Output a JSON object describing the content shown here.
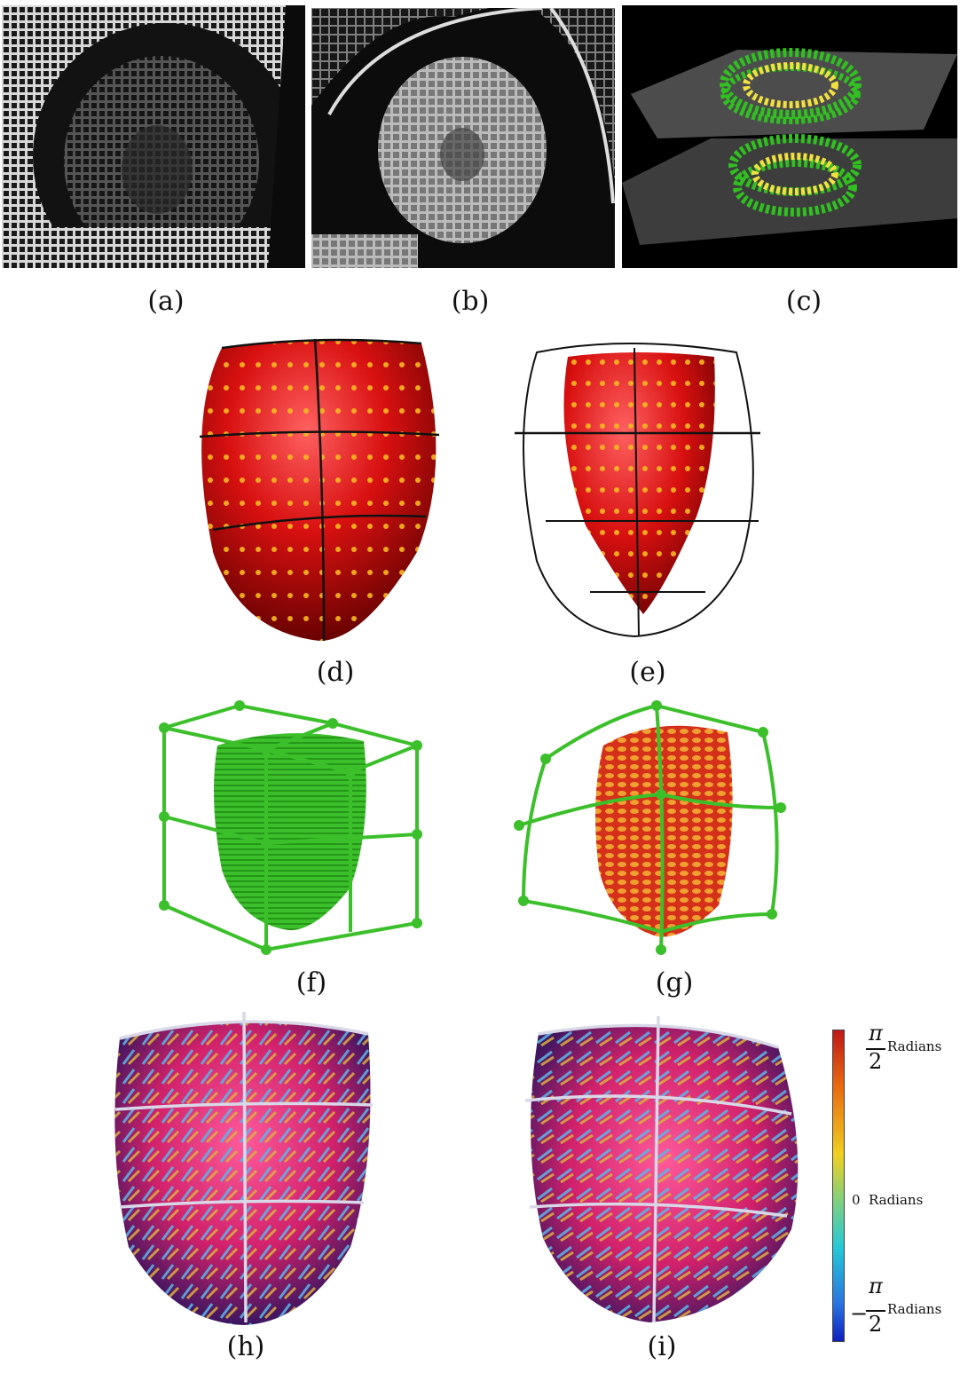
{
  "captions": {
    "a": "(a)",
    "b": "(b)",
    "c": "(c)",
    "d": "(d)",
    "e": "(e)",
    "f": "(f)",
    "g": "(g)",
    "h": "(h)",
    "i": "(i)"
  },
  "colorbar": {
    "top_pi": "π",
    "top_den": "2",
    "top_unit": "Radians",
    "mid_value": "0",
    "mid_unit": "Radians",
    "bot_minus": "−",
    "bot_pi": "π",
    "bot_den": "2",
    "bot_unit": "Radians",
    "gradient": [
      "#c01818",
      "#e86a10",
      "#f0d020",
      "#7fd07f",
      "#25c8d8",
      "#2a74e0",
      "#1020c0"
    ]
  },
  "colors": {
    "heart_red": "#d81818",
    "marker_yellow": "#f5b820",
    "mesh_green": "#3bbf2a",
    "mri_dark": "#111111"
  }
}
